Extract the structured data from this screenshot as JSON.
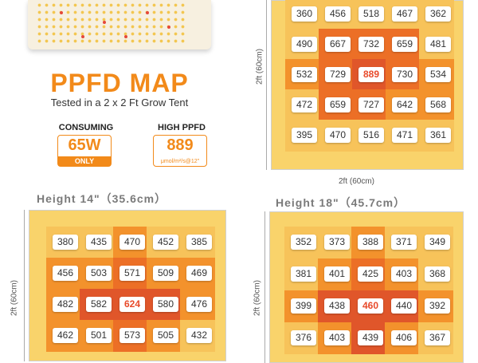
{
  "product": {
    "title": "PPFD MAP",
    "subtitle": "Tested in a 2 x 2 Ft Grow Tent",
    "consuming_label": "CONSUMING",
    "consuming_value": "65W",
    "consuming_note": "ONLY",
    "high_label": "HIGH PPFD",
    "high_value": "889",
    "high_unit": "μmol/m²/s@12\""
  },
  "colors": {
    "accent": "#f28a1a",
    "peak_text": "#e84a2a"
  },
  "maps": [
    {
      "heading": "",
      "axis_v": "2ft (60cm)",
      "axis_h": "2ft (60cm)",
      "rows": [
        [
          "360",
          "456",
          "518",
          "467",
          "362"
        ],
        [
          "490",
          "667",
          "732",
          "659",
          "481"
        ],
        [
          "532",
          "729",
          "889",
          "730",
          "534"
        ],
        [
          "472",
          "659",
          "727",
          "642",
          "568"
        ],
        [
          "395",
          "470",
          "516",
          "471",
          "361"
        ]
      ],
      "peak": "889"
    },
    {
      "heading": "Height 14\"（35.6cm）",
      "axis_v": "2ft (60cm)",
      "axis_h": "",
      "rows": [
        [
          "380",
          "435",
          "470",
          "452",
          "385"
        ],
        [
          "456",
          "503",
          "571",
          "509",
          "469"
        ],
        [
          "482",
          "582",
          "624",
          "580",
          "476"
        ],
        [
          "462",
          "501",
          "573",
          "505",
          "432"
        ]
      ],
      "peak": "624"
    },
    {
      "heading": "Height 18\"（45.7cm）",
      "axis_v": "2ft (60cm)",
      "axis_h": "",
      "rows": [
        [
          "352",
          "373",
          "388",
          "371",
          "349"
        ],
        [
          "381",
          "401",
          "425",
          "403",
          "368"
        ],
        [
          "399",
          "438",
          "460",
          "440",
          "392"
        ],
        [
          "376",
          "403",
          "439",
          "406",
          "367"
        ]
      ],
      "peak": "460"
    }
  ]
}
